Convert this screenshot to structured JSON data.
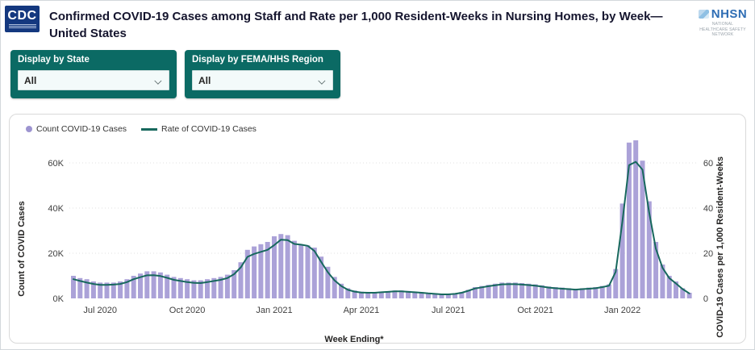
{
  "header": {
    "cdc_logo_text": "CDC",
    "title": "Confirmed COVID-19 Cases among Staff and Rate per 1,000 Resident-Weeks in Nursing Homes, by Week— United States",
    "nhsn_logo_text": "NHSN",
    "nhsn_subtext": "NATIONAL HEALTHCARE SAFETY NETWORK"
  },
  "filters": {
    "state": {
      "label": "Display by State",
      "value": "All"
    },
    "region": {
      "label": "Display by FEMA/HHS Region",
      "value": "All"
    }
  },
  "colors": {
    "teal_card": "#0b6a64",
    "bar": "#aba2d8",
    "line": "#17685d",
    "cdc_blue": "#14387f",
    "nhsn_blue": "#2e6db4",
    "gridline": "#e2e2e2"
  },
  "chart_data": {
    "type": "bar",
    "title": "Confirmed COVID-19 Cases among Staff and Rate per 1,000 Resident-Weeks in Nursing Homes, by Week— United States",
    "xlabel": "Week Ending*",
    "x_range_note": "weekly bars, early Jun 2020 through early Mar 2022",
    "y_left": {
      "label": "Count of COVID Cases",
      "unit": "cases (thousands shown as K)",
      "lim": [
        0,
        70
      ],
      "ticks": [
        {
          "label": "0K",
          "value": 0
        },
        {
          "label": "20K",
          "value": 20
        },
        {
          "label": "40K",
          "value": 40
        },
        {
          "label": "60K",
          "value": 60
        }
      ]
    },
    "y_right": {
      "label": "COVID-19 Cases per 1,000 Resident-Weeks",
      "lim": [
        0,
        70
      ],
      "ticks": [
        {
          "label": "0",
          "value": 0
        },
        {
          "label": "20",
          "value": 20
        },
        {
          "label": "40",
          "value": 40
        },
        {
          "label": "60",
          "value": 60
        }
      ]
    },
    "x_ticks": [
      {
        "label": "Jul 2020",
        "index": 4
      },
      {
        "label": "Oct 2020",
        "index": 17
      },
      {
        "label": "Jan 2021",
        "index": 30
      },
      {
        "label": "Apr 2021",
        "index": 43
      },
      {
        "label": "Jul 2021",
        "index": 56
      },
      {
        "label": "Oct 2021",
        "index": 69
      },
      {
        "label": "Jan 2022",
        "index": 82
      }
    ],
    "grid": "dotted horizontal at 20K/40K/60K",
    "legend_position": "top-left",
    "series": [
      {
        "name": "Count COVID-19 Cases",
        "type": "bar",
        "color": "#aba2d8",
        "values_unit": "thousands of cases",
        "values": [
          10,
          9,
          8.5,
          7.5,
          7,
          7,
          7,
          7.5,
          8.5,
          10,
          11,
          12,
          12,
          11.5,
          10.5,
          9.5,
          9,
          8.5,
          8,
          8,
          8.5,
          9,
          9.5,
          10.5,
          12.5,
          16,
          21.5,
          23,
          24,
          25,
          27.5,
          28.5,
          28,
          25.5,
          24,
          23.5,
          22.5,
          18.5,
          14,
          9.5,
          6.5,
          4.5,
          3.5,
          3,
          2.8,
          2.8,
          3,
          3.2,
          3.5,
          3.5,
          3.3,
          3,
          2.8,
          2.5,
          2.2,
          2,
          2,
          2.2,
          2.8,
          3.8,
          5,
          5.5,
          6,
          6.5,
          7,
          7,
          7,
          6.8,
          6.5,
          6.2,
          5.8,
          5.3,
          5,
          4.8,
          4.5,
          4.3,
          4.5,
          4.8,
          5,
          5.5,
          6.2,
          13,
          42,
          69,
          70,
          61,
          43,
          25,
          15,
          10,
          7.5,
          4.5,
          2.5
        ]
      },
      {
        "name": "Rate of COVID-19 Cases",
        "type": "line",
        "color": "#17685d",
        "values_unit": "cases per 1,000 resident-weeks",
        "values": [
          8.5,
          7.7,
          7,
          6.4,
          6,
          6,
          6.1,
          6.4,
          7.2,
          8.5,
          9.4,
          10.2,
          10.3,
          9.9,
          9.1,
          8.2,
          7.7,
          7.2,
          6.9,
          6.8,
          7.2,
          7.7,
          8.2,
          9,
          10.7,
          13.7,
          18.4,
          19.7,
          20.6,
          21.5,
          23.6,
          26,
          25.8,
          24.1,
          23.8,
          23.3,
          21,
          16.2,
          11.6,
          8,
          5.5,
          3.8,
          3,
          2.6,
          2.5,
          2.5,
          2.7,
          2.9,
          3.1,
          3.1,
          2.9,
          2.7,
          2.5,
          2.2,
          2,
          1.8,
          1.8,
          2,
          2.5,
          3.4,
          4.4,
          4.9,
          5.4,
          5.8,
          6.2,
          6.3,
          6.3,
          6.1,
          5.9,
          5.6,
          5.2,
          4.8,
          4.5,
          4.3,
          4.1,
          3.9,
          4.1,
          4.3,
          4.5,
          5,
          5.6,
          11.8,
          34,
          59,
          60.5,
          57,
          38,
          22,
          13.5,
          9,
          6.6,
          4.1,
          2.2
        ]
      }
    ]
  }
}
